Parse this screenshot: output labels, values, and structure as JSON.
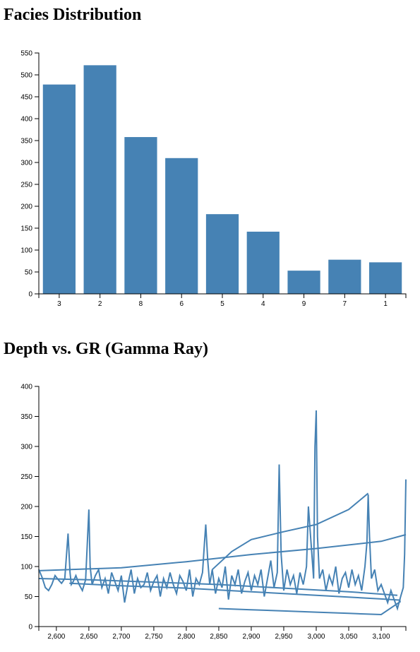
{
  "colors": {
    "bar": "#4682b4",
    "line": "#4682b4",
    "axis": "#000000"
  },
  "chart_data": [
    {
      "type": "bar",
      "title": "Facies Distribution",
      "categories": [
        "3",
        "2",
        "8",
        "6",
        "5",
        "4",
        "9",
        "7",
        "1"
      ],
      "values": [
        478,
        522,
        358,
        310,
        182,
        142,
        53,
        78,
        72
      ],
      "ylim": [
        0,
        550
      ],
      "yticks": [
        0,
        50,
        100,
        150,
        200,
        250,
        300,
        350,
        400,
        450,
        500,
        550
      ],
      "grid": false
    },
    {
      "type": "line",
      "title": "Depth vs. GR (Gamma Ray)",
      "xlim": [
        2573,
        3138
      ],
      "ylim": [
        0,
        400
      ],
      "xticks": [
        "2,600",
        "2,650",
        "2,700",
        "2,750",
        "2,800",
        "2,850",
        "2,900",
        "2,950",
        "3,000",
        "3,050",
        "3,100"
      ],
      "xtick_values": [
        2600,
        2650,
        2700,
        2750,
        2800,
        2850,
        2900,
        2950,
        3000,
        3050,
        3100
      ],
      "yticks": [
        0,
        50,
        100,
        150,
        200,
        250,
        300,
        350,
        400
      ],
      "grid": false,
      "series": [
        {
          "x": [
            2573,
            2578,
            2583,
            2588,
            2593,
            2598,
            2603,
            2608,
            2613,
            2618,
            2621,
            2623,
            2626,
            2630,
            2635,
            2640,
            2645,
            2650,
            2652,
            2655,
            2660,
            2665,
            2670,
            2675,
            2680,
            2685,
            2690,
            2695,
            2700,
            2705,
            2710,
            2715,
            2720,
            2725,
            2730,
            2735,
            2740,
            2745,
            2750,
            2755,
            2760,
            2765,
            2770,
            2775,
            2780,
            2785,
            2790,
            2795,
            2800,
            2805,
            2810,
            2815,
            2820,
            2825,
            2828,
            2830,
            2833,
            2836,
            2840,
            2845,
            2850,
            2855,
            2860,
            2865,
            2870,
            2875,
            2880,
            2885,
            2890,
            2895,
            2900,
            2905,
            2910,
            2915,
            2920,
            2925,
            2930,
            2935,
            2940,
            2943,
            2946,
            2950,
            2955,
            2960,
            2965,
            2970,
            2975,
            2980,
            2985,
            2988,
            2992,
            2996,
            2998,
            3000,
            3002,
            3005,
            3010,
            3015,
            3020,
            3025,
            3030,
            3035,
            3040,
            3045,
            3050,
            3055,
            3060,
            3065,
            3070,
            3075,
            3078,
            3080,
            3082,
            3085,
            3090,
            3095,
            3100,
            3105,
            3110,
            3115,
            3120,
            3125,
            3130,
            3134,
            3136,
            3138
          ],
          "y": [
            95,
            82,
            65,
            60,
            70,
            85,
            78,
            72,
            80,
            155,
            90,
            70,
            75,
            85,
            70,
            60,
            78,
            195,
            100,
            70,
            85,
            95,
            65,
            80,
            55,
            90,
            75,
            60,
            85,
            40,
            70,
            95,
            55,
            80,
            65,
            70,
            90,
            60,
            75,
            85,
            50,
            80,
            65,
            90,
            70,
            55,
            85,
            75,
            60,
            95,
            50,
            80,
            70,
            90,
            140,
            170,
            110,
            70,
            95,
            55,
            80,
            65,
            100,
            45,
            85,
            70,
            95,
            55,
            75,
            90,
            60,
            85,
            70,
            95,
            50,
            80,
            110,
            65,
            90,
            270,
            120,
            60,
            95,
            70,
            85,
            55,
            90,
            70,
            100,
            200,
            140,
            80,
            300,
            360,
            150,
            80,
            95,
            60,
            85,
            70,
            100,
            55,
            80,
            90,
            65,
            95,
            70,
            85,
            60,
            100,
            140,
            220,
            150,
            80,
            95,
            60,
            70,
            55,
            40,
            60,
            45,
            30,
            50,
            65,
            120,
            245
          ]
        },
        {
          "x": [
            2573,
            2700,
            2800,
            2900,
            3000,
            3100,
            3138
          ],
          "y": [
            93,
            98,
            108,
            120,
            130,
            142,
            153
          ]
        },
        {
          "x": [
            2840,
            2870,
            2900,
            2950,
            3000,
            3050,
            3080
          ],
          "y": [
            95,
            125,
            145,
            158,
            170,
            195,
            222
          ]
        },
        {
          "x": [
            2573,
            2650,
            2750,
            2850,
            2950,
            3050,
            3125
          ],
          "y": [
            80,
            78,
            74,
            70,
            64,
            58,
            52
          ]
        },
        {
          "x": [
            2620,
            2700,
            2800,
            2900,
            3000,
            3100,
            3130
          ],
          "y": [
            72,
            68,
            64,
            58,
            52,
            46,
            44
          ]
        },
        {
          "x": [
            2850,
            2900,
            2950,
            3000,
            3050,
            3100,
            3130
          ],
          "y": [
            30,
            28,
            26,
            24,
            22,
            20,
            42
          ]
        }
      ]
    }
  ]
}
